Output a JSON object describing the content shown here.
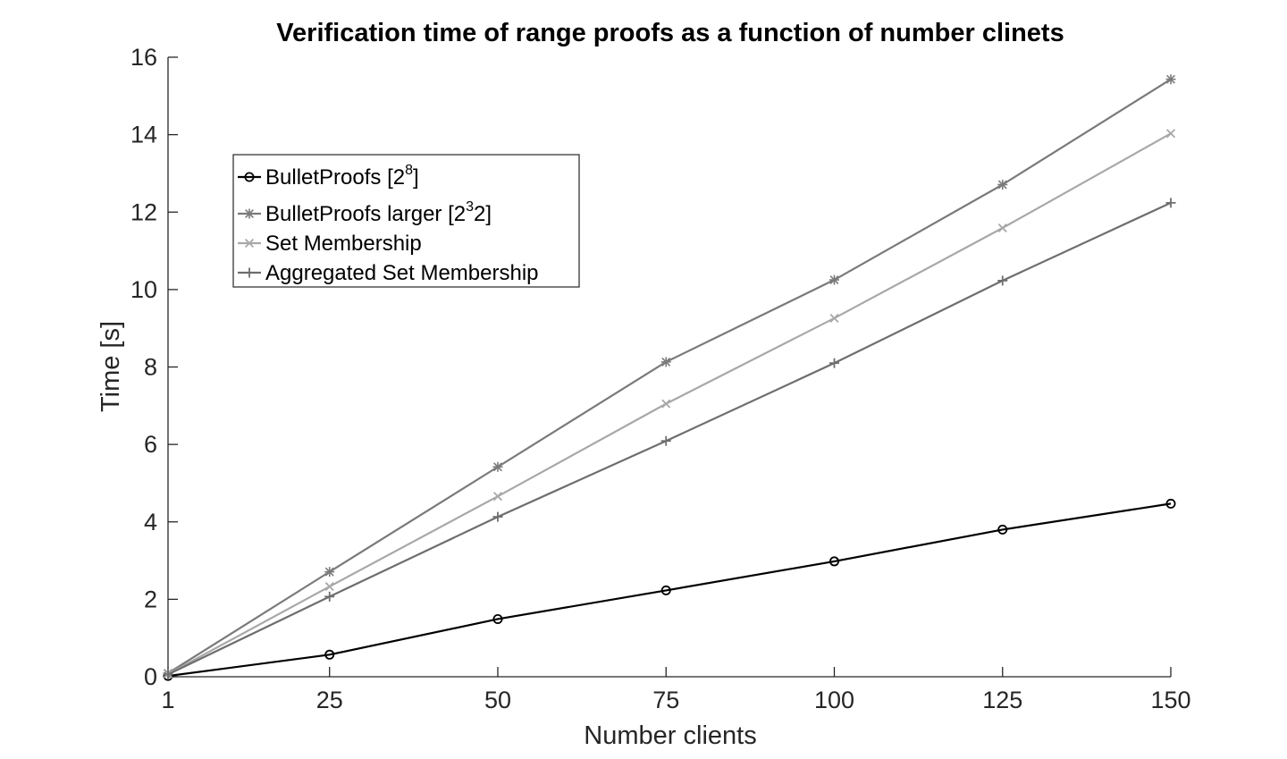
{
  "chart_data": {
    "type": "line",
    "title": "Verification time of range proofs as a function of number clinets",
    "xlabel": "Number clients",
    "ylabel": "Time [s]",
    "x": [
      1,
      25,
      50,
      75,
      100,
      125,
      150
    ],
    "xticks": [
      "1",
      "25",
      "50",
      "75",
      "100",
      "125",
      "150"
    ],
    "xlim": [
      1,
      150
    ],
    "ylim": [
      0,
      16
    ],
    "yticks": [
      0,
      2,
      4,
      6,
      8,
      10,
      12,
      14,
      16
    ],
    "grid": false,
    "legend_position": "upper-left",
    "series": [
      {
        "name": "BulletProofs [2",
        "name_sup": "8",
        "name_suffix": "]",
        "marker": "circle",
        "color": "#000000",
        "values": [
          0.02,
          0.57,
          1.49,
          2.23,
          2.98,
          3.8,
          4.47
        ]
      },
      {
        "name": "BulletProofs larger [2",
        "name_sup": "3",
        "name_suffix": "2]",
        "marker": "asterisk",
        "color": "#7a7a7a",
        "values": [
          0.09,
          2.71,
          5.42,
          8.13,
          10.25,
          12.71,
          15.43
        ]
      },
      {
        "name": "Set Membership",
        "marker": "x",
        "color": "#a8a8a8",
        "values": [
          0.07,
          2.33,
          4.66,
          7.05,
          9.26,
          11.59,
          14.03
        ]
      },
      {
        "name": "Aggregated Set Membership",
        "marker": "plus",
        "color": "#6e6e6e",
        "values": [
          0.06,
          2.07,
          4.13,
          6.09,
          8.1,
          10.23,
          12.24
        ]
      }
    ]
  }
}
